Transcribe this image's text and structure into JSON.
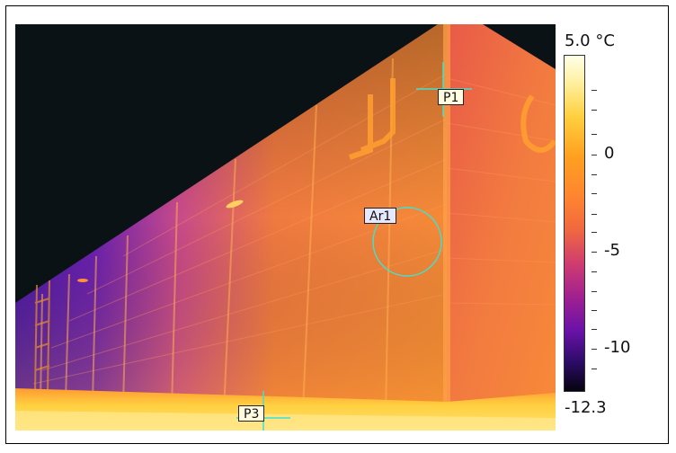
{
  "scale": {
    "max_label": "5.0 °C",
    "min_label": "-12.3",
    "tick_labels": [
      "0",
      "-5",
      "-10"
    ]
  },
  "markers": {
    "p1": "P1",
    "p3": "P3",
    "ar1": "Ar1"
  },
  "colors": {
    "marker_line": "#40e0d0",
    "label_bg": "#fffbe0",
    "area_label_bg": "#e6e8ff"
  }
}
